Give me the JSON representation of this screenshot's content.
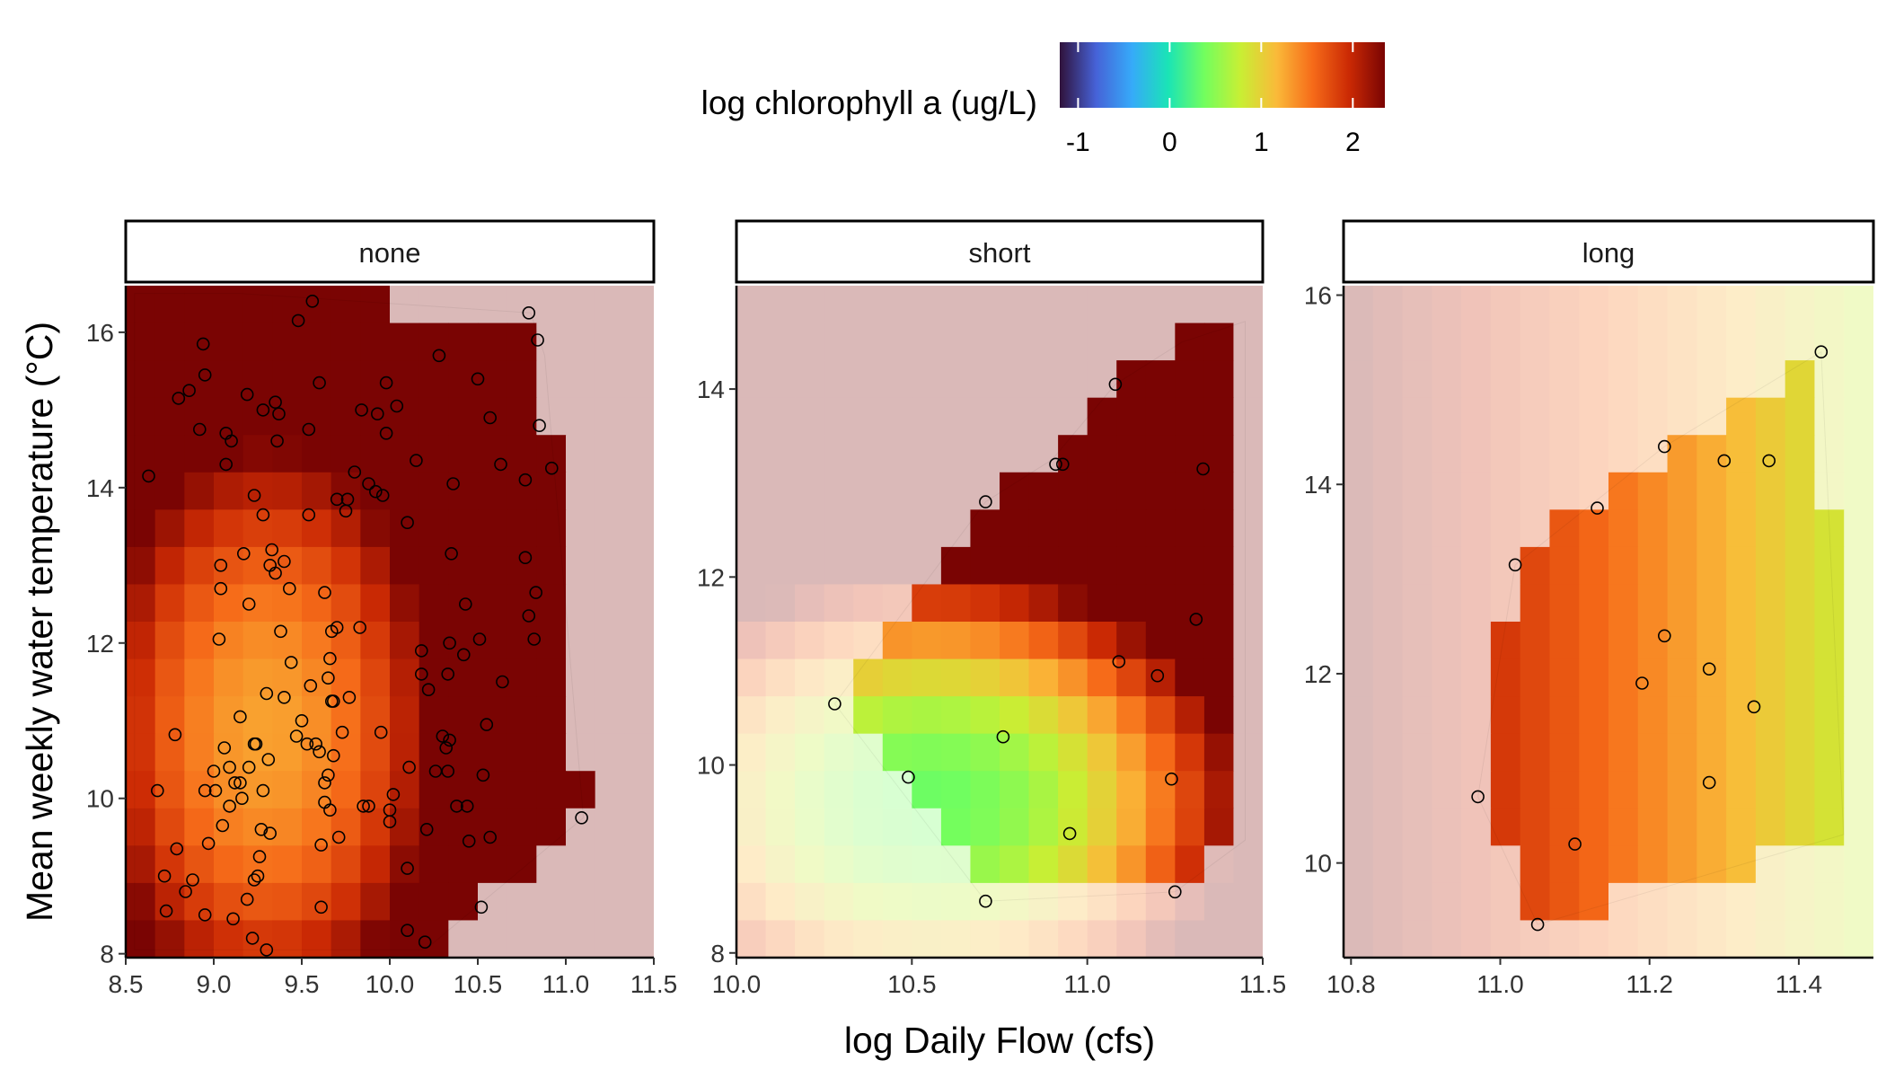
{
  "chart_data": {
    "type": "scatter",
    "xlabel": "log Daily Flow (cfs)",
    "ylabel": "Mean weekly water temperature (°C)",
    "legend": {
      "title": "log chlorophyll a (ug/L)",
      "position": "top",
      "range": [
        -1.2,
        2.35
      ],
      "ticks": [
        "-1",
        "0",
        "1",
        "2"
      ],
      "tick_values": [
        -1,
        0,
        1,
        2
      ],
      "palette": [
        "#30123b",
        "#4662d7",
        "#36aaf9",
        "#1ae4b6",
        "#72fe5e",
        "#c8ef34",
        "#faba39",
        "#f66b19",
        "#cb2a04",
        "#7a0403"
      ]
    },
    "grid": false,
    "panels": [
      {
        "name": "none",
        "xlim": [
          8.5,
          11.5
        ],
        "ylim": [
          7.95,
          16.6
        ],
        "xticks": [
          8.5,
          9.0,
          9.5,
          10.0,
          10.5,
          11.0,
          11.5
        ],
        "xtick_labels": [
          "8.5",
          "9.0",
          "9.5",
          "10.0",
          "10.5",
          "11.0",
          "11.5"
        ],
        "yticks": [
          8,
          10,
          12,
          14,
          16
        ],
        "ytick_labels": [
          "8",
          "10",
          "12",
          "14",
          "16"
        ],
        "hull": [
          [
            8.55,
            8.05
          ],
          [
            8.55,
            16.5
          ],
          [
            9.15,
            16.5
          ],
          [
            10.8,
            16.25
          ],
          [
            10.88,
            15.7
          ],
          [
            11.1,
            9.75
          ],
          [
            10.2,
            8.05
          ]
        ],
        "field": {
          "base": 1.3,
          "cx": 9.4,
          "cy": 11.0,
          "ax": 1.2,
          "ay": 0.08,
          "bx": 0.25,
          "by": 0.02
        },
        "outside_alpha": 0.28,
        "points": [
          [
            8.63,
            14.15
          ],
          [
            8.68,
            10.1
          ],
          [
            8.72,
            9.0
          ],
          [
            8.73,
            8.55
          ],
          [
            8.78,
            10.82
          ],
          [
            8.79,
            9.35
          ],
          [
            8.8,
            15.15
          ],
          [
            8.84,
            8.8
          ],
          [
            8.86,
            15.25
          ],
          [
            8.88,
            8.95
          ],
          [
            8.92,
            14.75
          ],
          [
            8.94,
            15.85
          ],
          [
            8.95,
            10.1
          ],
          [
            8.95,
            15.45
          ],
          [
            8.95,
            8.5
          ],
          [
            8.97,
            9.42
          ],
          [
            9.0,
            10.35
          ],
          [
            9.01,
            10.1
          ],
          [
            9.03,
            12.05
          ],
          [
            9.04,
            12.7
          ],
          [
            9.04,
            13.0
          ],
          [
            9.05,
            9.65
          ],
          [
            9.06,
            10.65
          ],
          [
            9.07,
            14.3
          ],
          [
            9.07,
            14.7
          ],
          [
            9.09,
            10.4
          ],
          [
            9.09,
            9.9
          ],
          [
            9.1,
            14.6
          ],
          [
            9.11,
            8.45
          ],
          [
            9.12,
            10.2
          ],
          [
            9.15,
            10.2
          ],
          [
            9.15,
            11.05
          ],
          [
            9.16,
            10.0
          ],
          [
            9.17,
            13.15
          ],
          [
            9.19,
            8.7
          ],
          [
            9.19,
            15.2
          ],
          [
            9.2,
            10.4
          ],
          [
            9.2,
            12.5
          ],
          [
            9.22,
            8.2
          ],
          [
            9.23,
            8.95
          ],
          [
            9.23,
            13.9
          ],
          [
            9.23,
            10.7
          ],
          [
            9.24,
            10.7
          ],
          [
            9.25,
            9.0
          ],
          [
            9.26,
            9.25
          ],
          [
            9.27,
            9.6
          ],
          [
            9.28,
            15.0
          ],
          [
            9.28,
            10.1
          ],
          [
            9.28,
            13.65
          ],
          [
            9.3,
            8.05
          ],
          [
            9.3,
            11.35
          ],
          [
            9.31,
            10.5
          ],
          [
            9.32,
            13.0
          ],
          [
            9.32,
            9.55
          ],
          [
            9.33,
            13.2
          ],
          [
            9.35,
            15.1
          ],
          [
            9.35,
            12.9
          ],
          [
            9.37,
            14.95
          ],
          [
            9.36,
            14.6
          ],
          [
            9.38,
            12.15
          ],
          [
            9.4,
            13.05
          ],
          [
            9.4,
            11.3
          ],
          [
            9.43,
            12.7
          ],
          [
            9.44,
            11.75
          ],
          [
            9.47,
            10.8
          ],
          [
            9.48,
            16.15
          ],
          [
            9.5,
            11.0
          ],
          [
            9.53,
            10.7
          ],
          [
            9.54,
            13.65
          ],
          [
            9.54,
            14.75
          ],
          [
            9.55,
            11.45
          ],
          [
            9.56,
            16.4
          ],
          [
            9.58,
            10.7
          ],
          [
            9.6,
            15.35
          ],
          [
            9.6,
            10.6
          ],
          [
            9.61,
            9.4
          ],
          [
            9.61,
            8.6
          ],
          [
            9.63,
            10.2
          ],
          [
            9.63,
            9.95
          ],
          [
            9.63,
            12.65
          ],
          [
            9.65,
            11.55
          ],
          [
            9.65,
            10.3
          ],
          [
            9.66,
            9.85
          ],
          [
            9.66,
            11.8
          ],
          [
            9.67,
            11.25
          ],
          [
            9.67,
            12.15
          ],
          [
            9.68,
            11.25
          ],
          [
            9.68,
            10.55
          ],
          [
            9.7,
            12.2
          ],
          [
            9.7,
            13.85
          ],
          [
            9.71,
            9.5
          ],
          [
            9.73,
            10.85
          ],
          [
            9.75,
            13.7
          ],
          [
            9.76,
            13.85
          ],
          [
            9.77,
            11.3
          ],
          [
            9.8,
            14.2
          ],
          [
            9.83,
            12.2
          ],
          [
            9.84,
            15.0
          ],
          [
            9.85,
            9.9
          ],
          [
            9.88,
            9.9
          ],
          [
            9.88,
            14.05
          ],
          [
            9.92,
            13.95
          ],
          [
            9.93,
            14.95
          ],
          [
            9.95,
            10.85
          ],
          [
            9.96,
            13.9
          ],
          [
            9.98,
            15.35
          ],
          [
            9.98,
            14.7
          ],
          [
            10.0,
            9.85
          ],
          [
            10.0,
            9.7
          ],
          [
            10.02,
            10.05
          ],
          [
            10.04,
            15.05
          ],
          [
            10.1,
            9.1
          ],
          [
            10.1,
            8.3
          ],
          [
            10.1,
            13.55
          ],
          [
            10.11,
            10.4
          ],
          [
            10.15,
            14.35
          ],
          [
            10.18,
            11.9
          ],
          [
            10.18,
            11.6
          ],
          [
            10.2,
            8.15
          ],
          [
            10.22,
            11.4
          ],
          [
            10.21,
            9.6
          ],
          [
            10.26,
            10.35
          ],
          [
            10.28,
            15.7
          ],
          [
            10.3,
            10.8
          ],
          [
            10.32,
            10.65
          ],
          [
            10.34,
            12.0
          ],
          [
            10.33,
            10.35
          ],
          [
            10.33,
            11.6
          ],
          [
            10.34,
            10.75
          ],
          [
            10.35,
            13.15
          ],
          [
            10.36,
            14.05
          ],
          [
            10.38,
            9.9
          ],
          [
            10.42,
            11.85
          ],
          [
            10.43,
            12.5
          ],
          [
            10.44,
            9.9
          ],
          [
            10.45,
            9.45
          ],
          [
            10.5,
            15.4
          ],
          [
            10.51,
            12.05
          ],
          [
            10.52,
            8.6
          ],
          [
            10.53,
            10.3
          ],
          [
            10.55,
            10.95
          ],
          [
            10.57,
            9.5
          ],
          [
            10.57,
            14.9
          ],
          [
            10.63,
            14.3
          ],
          [
            10.64,
            11.5
          ],
          [
            10.77,
            14.1
          ],
          [
            10.77,
            13.1
          ],
          [
            10.79,
            12.35
          ],
          [
            10.79,
            16.25
          ],
          [
            10.82,
            12.05
          ],
          [
            10.83,
            12.65
          ],
          [
            10.84,
            15.9
          ],
          [
            10.85,
            14.8
          ],
          [
            10.92,
            14.25
          ],
          [
            11.09,
            9.75
          ]
        ]
      },
      {
        "name": "short",
        "xlim": [
          10.0,
          11.5
        ],
        "ylim": [
          7.95,
          15.1
        ],
        "xticks": [
          10.0,
          10.5,
          11.0,
          11.5
        ],
        "xtick_labels": [
          "10.0",
          "10.5",
          "11.0",
          "11.5"
        ],
        "yticks": [
          8,
          10,
          12,
          14
        ],
        "ytick_labels": [
          "8",
          "10",
          "12",
          "14"
        ],
        "hull": [
          [
            10.28,
            10.65
          ],
          [
            10.71,
            8.55
          ],
          [
            11.25,
            8.65
          ],
          [
            11.45,
            9.2
          ],
          [
            11.45,
            14.72
          ],
          [
            11.27,
            14.5
          ],
          [
            11.08,
            14.05
          ],
          [
            10.9,
            13.25
          ],
          [
            10.71,
            12.8
          ]
        ],
        "field": {
          "base": 0.35,
          "cx": 10.55,
          "cy": 9.6,
          "ax": 2.6,
          "ay": 0.33,
          "bx": 0.0,
          "by": 0.0
        },
        "outside_alpha": 0.28,
        "points": [
          [
            10.28,
            10.65
          ],
          [
            10.49,
            9.87
          ],
          [
            10.71,
            12.8
          ],
          [
            10.71,
            8.55
          ],
          [
            10.76,
            10.3
          ],
          [
            10.91,
            13.2
          ],
          [
            10.93,
            13.2
          ],
          [
            10.95,
            9.27
          ],
          [
            11.08,
            14.05
          ],
          [
            11.09,
            11.1
          ],
          [
            11.2,
            10.95
          ],
          [
            11.24,
            9.85
          ],
          [
            11.25,
            8.65
          ],
          [
            11.31,
            11.55
          ],
          [
            11.33,
            13.15
          ]
        ]
      },
      {
        "name": "long",
        "xlim": [
          10.79,
          11.5
        ],
        "ylim": [
          9.0,
          16.1
        ],
        "xticks": [
          10.8,
          11.0,
          11.2,
          11.4
        ],
        "xtick_labels": [
          "10.8",
          "11.0",
          "11.2",
          "11.4"
        ],
        "yticks": [
          10,
          12,
          14,
          16
        ],
        "ytick_labels": [
          "10",
          "12",
          "14",
          "16"
        ],
        "hull": [
          [
            10.97,
            10.7
          ],
          [
            11.05,
            9.35
          ],
          [
            11.46,
            10.3
          ],
          [
            11.43,
            15.4
          ],
          [
            11.22,
            14.4
          ],
          [
            11.02,
            13.15
          ]
        ],
        "field": {
          "base": 1.95,
          "cx": 10.97,
          "cy": 12.0,
          "ax": 0.0,
          "ay": 0.0,
          "bx": -2.3,
          "by": 0.0
        },
        "outside_alpha": 0.28,
        "points": [
          [
            10.97,
            10.7
          ],
          [
            11.02,
            13.15
          ],
          [
            11.05,
            9.35
          ],
          [
            11.1,
            10.2
          ],
          [
            11.13,
            13.75
          ],
          [
            11.19,
            11.9
          ],
          [
            11.22,
            12.4
          ],
          [
            11.22,
            14.4
          ],
          [
            11.28,
            12.05
          ],
          [
            11.28,
            10.85
          ],
          [
            11.3,
            14.25
          ],
          [
            11.34,
            11.65
          ],
          [
            11.36,
            14.25
          ],
          [
            11.43,
            15.4
          ]
        ]
      }
    ]
  }
}
